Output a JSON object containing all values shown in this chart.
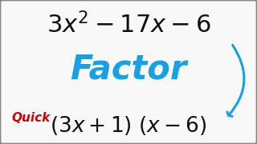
{
  "bg_color": "#f8f8f8",
  "border_color": "#888888",
  "trinomial": "3x^{2} - 17x - 6",
  "factor_word": "Factor",
  "factor_color": "#1a9fe0",
  "quick_word": "Quick",
  "quick_color": "#cc0000",
  "answer": "(3x+1) (x-6)",
  "text_color": "#111111",
  "arrow_color": "#1a9fe0"
}
